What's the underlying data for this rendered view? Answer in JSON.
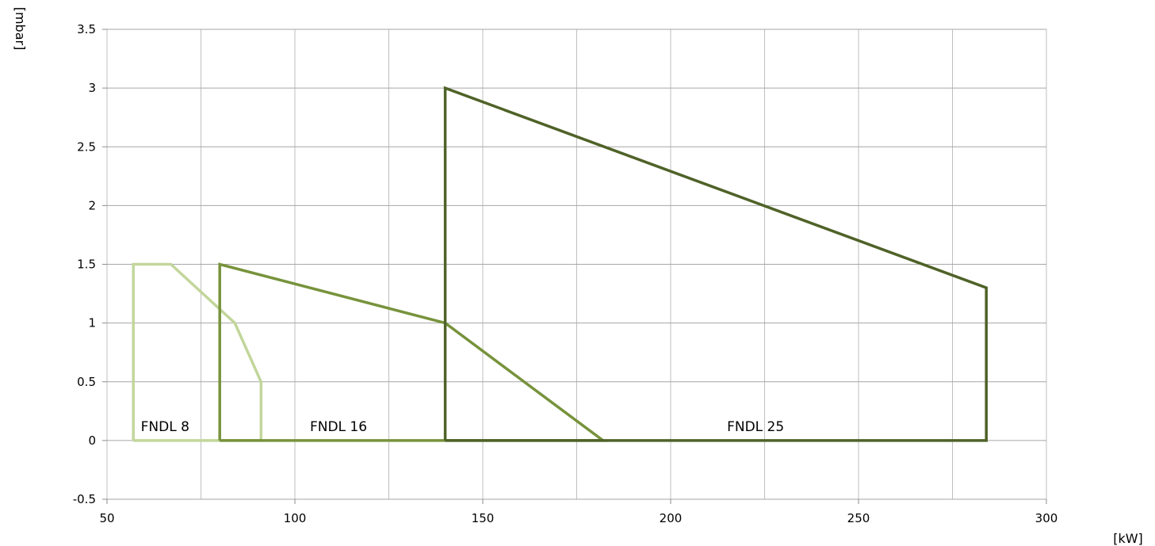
{
  "chart_data": {
    "type": "line",
    "title": "",
    "xlabel": "[kW]",
    "ylabel": "[mbar]",
    "xlim": [
      50,
      300
    ],
    "ylim": [
      -0.5,
      3.5
    ],
    "x_ticks": [
      50,
      100,
      150,
      200,
      250,
      300
    ],
    "x_tick_labels": [
      "50",
      "100",
      "150",
      "200",
      "250",
      "300"
    ],
    "x_minor_gridlines": [
      75,
      125,
      175,
      225,
      275
    ],
    "y_ticks": [
      -0.5,
      0,
      0.5,
      1,
      1.5,
      2,
      2.5,
      3,
      3.5
    ],
    "y_tick_labels": [
      "-0.5",
      "0",
      "0.5",
      "1",
      "1.5",
      "2",
      "2.5",
      "3",
      "3.5"
    ],
    "grid": true,
    "legend": "none",
    "series": [
      {
        "name": "FNDL 8",
        "color": "#c2d69b",
        "points": [
          [
            57,
            0
          ],
          [
            57,
            1.5
          ],
          [
            67,
            1.5
          ],
          [
            84,
            1.0
          ],
          [
            91,
            0.5
          ],
          [
            91,
            0
          ],
          [
            57,
            0
          ]
        ],
        "label_anchor": [
          59,
          0.12
        ]
      },
      {
        "name": "FNDL 16",
        "color": "#77933c",
        "points": [
          [
            80,
            0
          ],
          [
            80,
            1.5
          ],
          [
            140,
            1.0
          ],
          [
            182,
            0
          ],
          [
            80,
            0
          ]
        ],
        "label_anchor": [
          104,
          0.12
        ]
      },
      {
        "name": "FNDL 25",
        "color": "#4f6228",
        "points": [
          [
            140,
            0
          ],
          [
            140,
            3.0
          ],
          [
            284,
            1.3
          ],
          [
            284,
            0
          ],
          [
            140,
            0
          ]
        ],
        "label_anchor": [
          215,
          0.12
        ]
      }
    ]
  }
}
